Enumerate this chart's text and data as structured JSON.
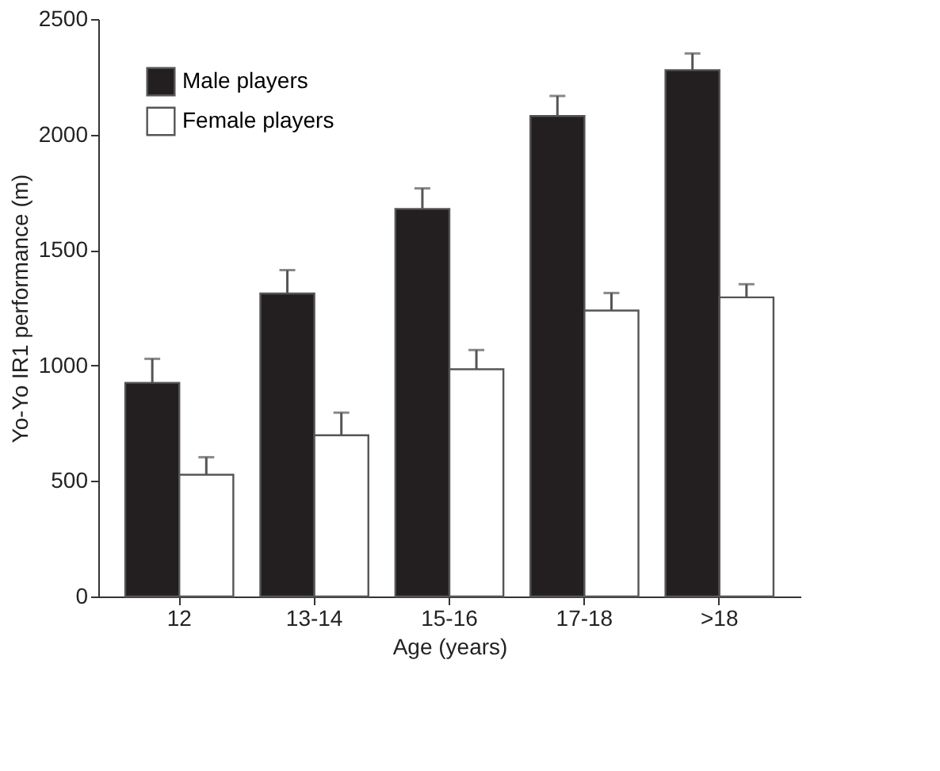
{
  "chart_data": {
    "type": "bar",
    "xlabel": "Age (years)",
    "ylabel": "Yo-Yo IR1 performance (m)",
    "categories": [
      "12",
      "13-14",
      "15-16",
      "17-18",
      ">18"
    ],
    "series": [
      {
        "name": "Male players",
        "color": "#231f20",
        "values": [
          925,
          1312,
          1678,
          2080,
          2279
        ],
        "errors": [
          [
            925,
            1029
          ],
          [
            1312,
            1413
          ],
          [
            1678,
            1767
          ],
          [
            2080,
            2167
          ],
          [
            2279,
            2351
          ]
        ]
      },
      {
        "name": "Female players",
        "color": "#ffffff",
        "values": [
          527,
          698,
          984,
          1238,
          1295
        ],
        "errors": [
          [
            527,
            603
          ],
          [
            698,
            796
          ],
          [
            984,
            1067
          ],
          [
            1238,
            1314
          ],
          [
            1295,
            1352
          ]
        ]
      }
    ],
    "ylim": [
      0,
      2500
    ],
    "yticks": [
      0,
      500,
      1000,
      1500,
      2000,
      2500
    ],
    "grid": false,
    "legend": "top left"
  }
}
